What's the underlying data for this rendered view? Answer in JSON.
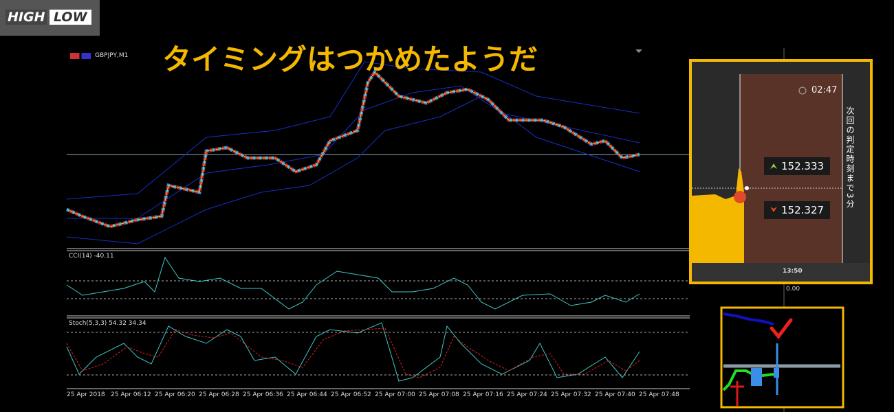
{
  "logo": {
    "high": "HIGH",
    "low": "LOW"
  },
  "title": "タイミングはつかめたようだ",
  "symbol": "GBPJPY,M1",
  "cci_label": "CCI(14) -40.11",
  "cci_zero": "0.00",
  "stoch_label": "Stoch(5,3,3) 54.32 34.34",
  "time_labels": [
    "25 Apr 2018",
    "25 Apr 06:12",
    "25 Apr 06:20",
    "25 Apr 06:28",
    "25 Apr 06:36",
    "25 Apr 06:44",
    "25 Apr 06:52",
    "25 Apr 07:00",
    "25 Apr 07:08",
    "25 Apr 07:16",
    "25 Apr 07:24",
    "25 Apr 07:32",
    "25 Apr 07:40",
    "25 Apr 07:48"
  ],
  "trade_panel": {
    "timer": "02:47",
    "countdown": "次回の判定時刻まで3分",
    "high_price": "152.333",
    "low_price": "152.327",
    "time": "13:50"
  }
}
